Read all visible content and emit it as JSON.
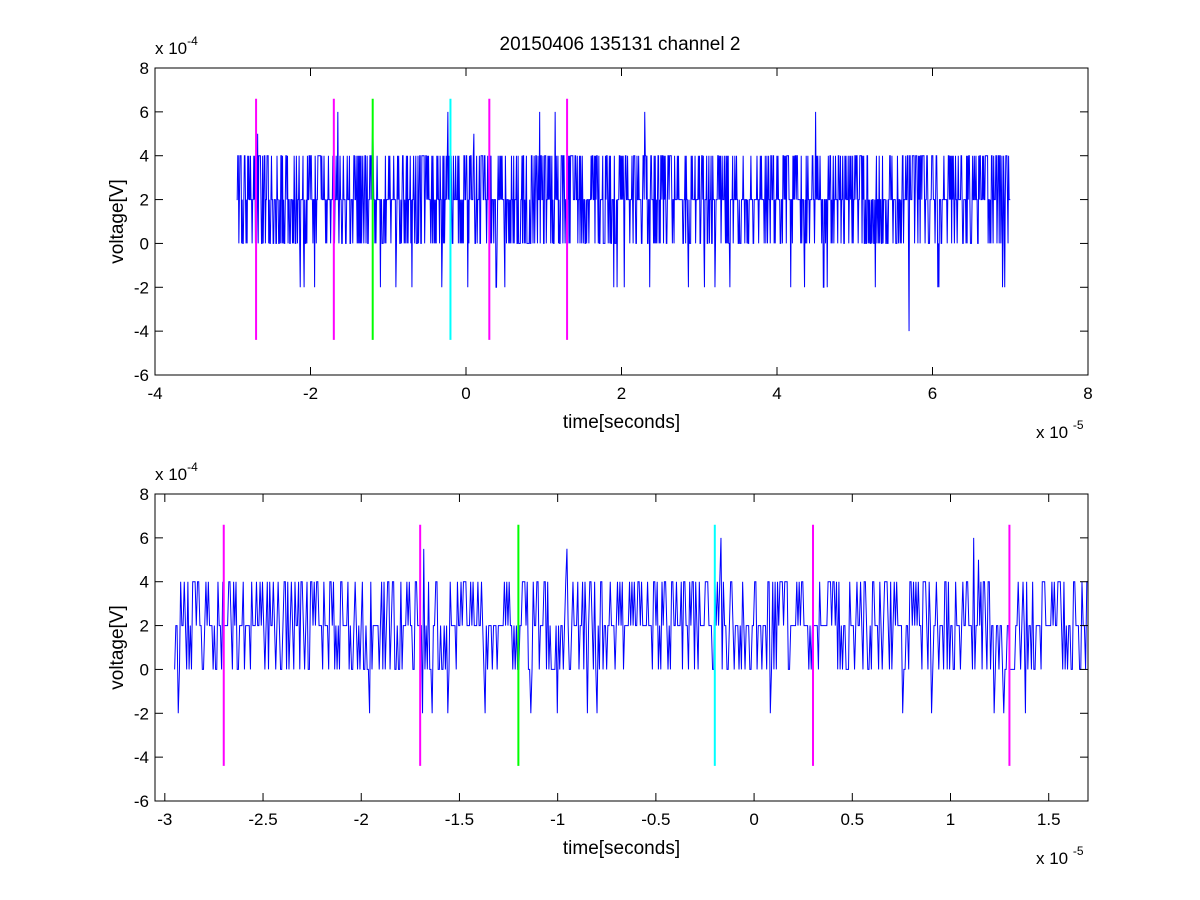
{
  "figure": {
    "title": "20150406 135131 channel 2"
  },
  "chart_data": [
    {
      "type": "line",
      "name": "full",
      "xlabel": "time[seconds]",
      "ylabel": "voltage[V]",
      "x_multiplier_label": "x 10",
      "x_multiplier_exp": "-5",
      "y_multiplier_label": "x 10",
      "y_multiplier_exp": "-4",
      "xlim": [
        -4,
        8
      ],
      "ylim": [
        -6,
        8
      ],
      "xticks": [
        -4,
        -2,
        0,
        2,
        4,
        6,
        8
      ],
      "xtick_labels": [
        "-4",
        "-2",
        "0",
        "2",
        "4",
        "6",
        "8"
      ],
      "yticks": [
        -6,
        -4,
        -2,
        0,
        2,
        4,
        6,
        8
      ],
      "ytick_labels": [
        "-6",
        "-4",
        "-2",
        "0",
        "2",
        "4",
        "6",
        "8"
      ],
      "signal": {
        "color": "#0000ff",
        "x_start": -2.95,
        "x_end": 7.0,
        "levels": [
          -4,
          -2,
          0,
          2,
          4,
          6
        ],
        "spike_points": [
          [
            -2.68,
            5
          ],
          [
            -1.65,
            6
          ],
          [
            -1.2,
            6
          ],
          [
            -0.23,
            6
          ],
          [
            0.1,
            5
          ],
          [
            -1.95,
            -2
          ],
          [
            -1.1,
            -2
          ],
          [
            -0.9,
            -2
          ],
          [
            0.5,
            -2
          ],
          [
            1.9,
            -2
          ],
          [
            3.2,
            -2
          ],
          [
            4.6,
            -2
          ],
          [
            5.7,
            -4
          ],
          [
            6.9,
            -2
          ],
          [
            4.5,
            6
          ],
          [
            2.3,
            6
          ],
          [
            1.15,
            6
          ],
          [
            0.95,
            6
          ]
        ]
      },
      "markers": [
        {
          "x": -2.7,
          "color": "#ff00ff"
        },
        {
          "x": -1.7,
          "color": "#ff00ff"
        },
        {
          "x": -1.2,
          "color": "#00ff00"
        },
        {
          "x": -0.2,
          "color": "#00ffff"
        },
        {
          "x": 0.3,
          "color": "#ff00ff"
        },
        {
          "x": 1.3,
          "color": "#ff00ff"
        }
      ],
      "marker_range": [
        -4.4,
        6.6
      ]
    },
    {
      "type": "line",
      "name": "zoom",
      "xlabel": "time[seconds]",
      "ylabel": "voltage[V]",
      "x_multiplier_label": "x 10",
      "x_multiplier_exp": "-5",
      "y_multiplier_label": "x 10",
      "y_multiplier_exp": "-4",
      "xlim": [
        -3.05,
        1.7
      ],
      "ylim": [
        -6,
        8
      ],
      "xticks": [
        -3,
        -2.5,
        -2,
        -1.5,
        -1,
        -0.5,
        0,
        0.5,
        1,
        1.5
      ],
      "xtick_labels": [
        "-3",
        "-2.5",
        "-2",
        "-1.5",
        "-1",
        "-0.5",
        "0",
        "0.5",
        "1",
        "1.5"
      ],
      "yticks": [
        -6,
        -4,
        -2,
        0,
        2,
        4,
        6,
        8
      ],
      "ytick_labels": [
        "-6",
        "-4",
        "-2",
        "0",
        "2",
        "4",
        "6",
        "8"
      ],
      "signal": {
        "color": "#0000ff",
        "x_start": -2.95,
        "x_end": 1.7,
        "levels": [
          -2,
          0,
          2,
          4,
          6
        ],
        "spike_points": [
          [
            -1.96,
            -2
          ],
          [
            -1.68,
            5.5
          ],
          [
            -1.69,
            -2
          ],
          [
            -1.37,
            -2
          ],
          [
            -1.0,
            -2
          ],
          [
            -0.95,
            5.5
          ],
          [
            -0.85,
            -2
          ],
          [
            -0.8,
            -2
          ],
          [
            -0.17,
            6
          ],
          [
            -0.35,
            4
          ],
          [
            0.08,
            -2
          ],
          [
            1.12,
            6
          ],
          [
            1.27,
            -2
          ],
          [
            1.38,
            -2
          ],
          [
            1.14,
            5
          ]
        ]
      },
      "markers": [
        {
          "x": -2.7,
          "color": "#ff00ff"
        },
        {
          "x": -1.7,
          "color": "#ff00ff"
        },
        {
          "x": -1.2,
          "color": "#00ff00"
        },
        {
          "x": -0.2,
          "color": "#00ffff"
        },
        {
          "x": 0.3,
          "color": "#ff00ff"
        },
        {
          "x": 1.3,
          "color": "#ff00ff"
        }
      ],
      "marker_range": [
        -4.4,
        6.6
      ]
    }
  ]
}
